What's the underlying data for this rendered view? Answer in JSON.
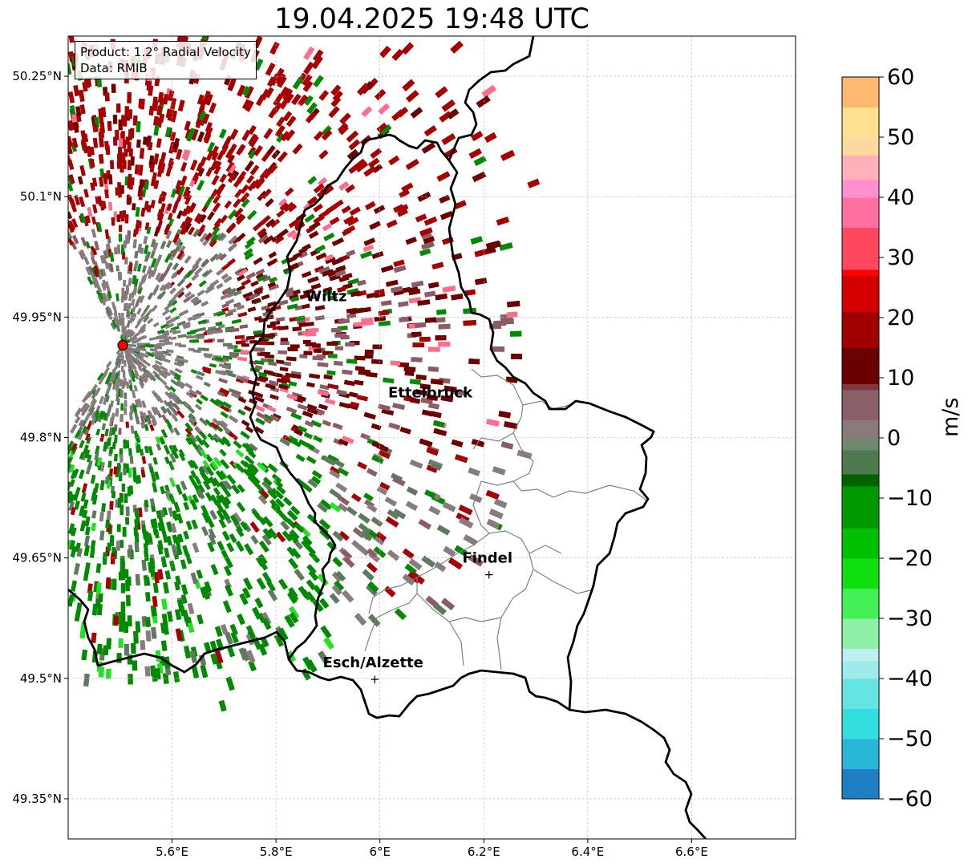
{
  "title": "19.04.2025 19:48 UTC",
  "info": {
    "product": "Product: 1.2° Radial Velocity",
    "source": "Data: RMIB"
  },
  "axes": {
    "lon_ticks": [
      "5.6°E",
      "5.8°E",
      "6°E",
      "6.2°E",
      "6.4°E",
      "6.6°E"
    ],
    "lat_ticks": [
      "50.25°N",
      "50.1°N",
      "49.95°N",
      "49.8°N",
      "49.65°N",
      "49.5°N",
      "49.35°N"
    ],
    "lon_values": [
      5.6,
      5.8,
      6.0,
      6.2,
      6.4,
      6.6
    ],
    "lat_values": [
      50.25,
      50.1,
      49.95,
      49.8,
      49.65,
      49.5,
      49.35
    ],
    "lon_range": [
      5.4,
      6.8
    ],
    "lat_range": [
      49.3,
      50.3
    ],
    "grid": true
  },
  "cities": [
    {
      "name": "Wiltz",
      "lon": 5.9,
      "lat": 49.97,
      "marker": false
    },
    {
      "name": "Ettelbruck",
      "lon": 6.1,
      "lat": 49.85,
      "marker": false
    },
    {
      "name": "Findel",
      "lon": 6.21,
      "lat": 49.63,
      "marker": true
    },
    {
      "name": "Esch/Alzette",
      "lon": 5.99,
      "lat": 49.5,
      "marker": true
    }
  ],
  "radar_site": {
    "lon": 5.505,
    "lat": 49.915,
    "color": "#ff0000"
  },
  "colorbar": {
    "label": "m/s",
    "ticks": [
      "60",
      "50",
      "40",
      "30",
      "20",
      "10",
      "0",
      "−10",
      "−20",
      "−30",
      "−40",
      "−50",
      "−60"
    ],
    "tick_values": [
      60,
      50,
      40,
      30,
      20,
      10,
      0,
      -10,
      -20,
      -30,
      -40,
      -50,
      -60
    ],
    "range": [
      -60,
      60
    ],
    "stops": [
      {
        "v": -60,
        "c": "#1f7fc4"
      },
      {
        "v": -55,
        "c": "#29b6d9"
      },
      {
        "v": -50,
        "c": "#33dede"
      },
      {
        "v": -45,
        "c": "#66e4e4"
      },
      {
        "v": -40,
        "c": "#a0eaea"
      },
      {
        "v": -37,
        "c": "#bdeef0"
      },
      {
        "v": -35,
        "c": "#8ff0a8"
      },
      {
        "v": -30,
        "c": "#44f055"
      },
      {
        "v": -25,
        "c": "#10e010"
      },
      {
        "v": -20,
        "c": "#00c000"
      },
      {
        "v": -15,
        "c": "#009a00"
      },
      {
        "v": -8,
        "c": "#006400"
      },
      {
        "v": -6,
        "c": "#4f7a4f"
      },
      {
        "v": -2,
        "c": "#6e8a6e"
      },
      {
        "v": 0,
        "c": "#8a7a7a"
      },
      {
        "v": 3,
        "c": "#8a6068"
      },
      {
        "v": 8,
        "c": "#7a3a40"
      },
      {
        "v": 9,
        "c": "#6a0000"
      },
      {
        "v": 15,
        "c": "#a00000"
      },
      {
        "v": 21,
        "c": "#d40000"
      },
      {
        "v": 27,
        "c": "#ff0000"
      },
      {
        "v": 28,
        "c": "#ff4860"
      },
      {
        "v": 35,
        "c": "#ff70a0"
      },
      {
        "v": 40,
        "c": "#ff90d0"
      },
      {
        "v": 43,
        "c": "#ffb0b8"
      },
      {
        "v": 47,
        "c": "#ffd8a0"
      },
      {
        "v": 50,
        "c": "#ffe090"
      },
      {
        "v": 55,
        "c": "#ffb870"
      },
      {
        "v": 60,
        "c": "#ff9a50"
      }
    ]
  },
  "colors": {
    "border": "#000000",
    "canton": "#808080",
    "grid": "#bbbbbb",
    "radar_red": "#a80000",
    "radar_darkred": "#6e0000",
    "radar_pink": "#ff6d8c",
    "radar_grey": "#877b7e",
    "radar_mauve": "#8a5c66",
    "radar_green": "#008a00",
    "radar_lightgreen": "#22e022",
    "radar_greygreen": "#5e7a5e"
  }
}
